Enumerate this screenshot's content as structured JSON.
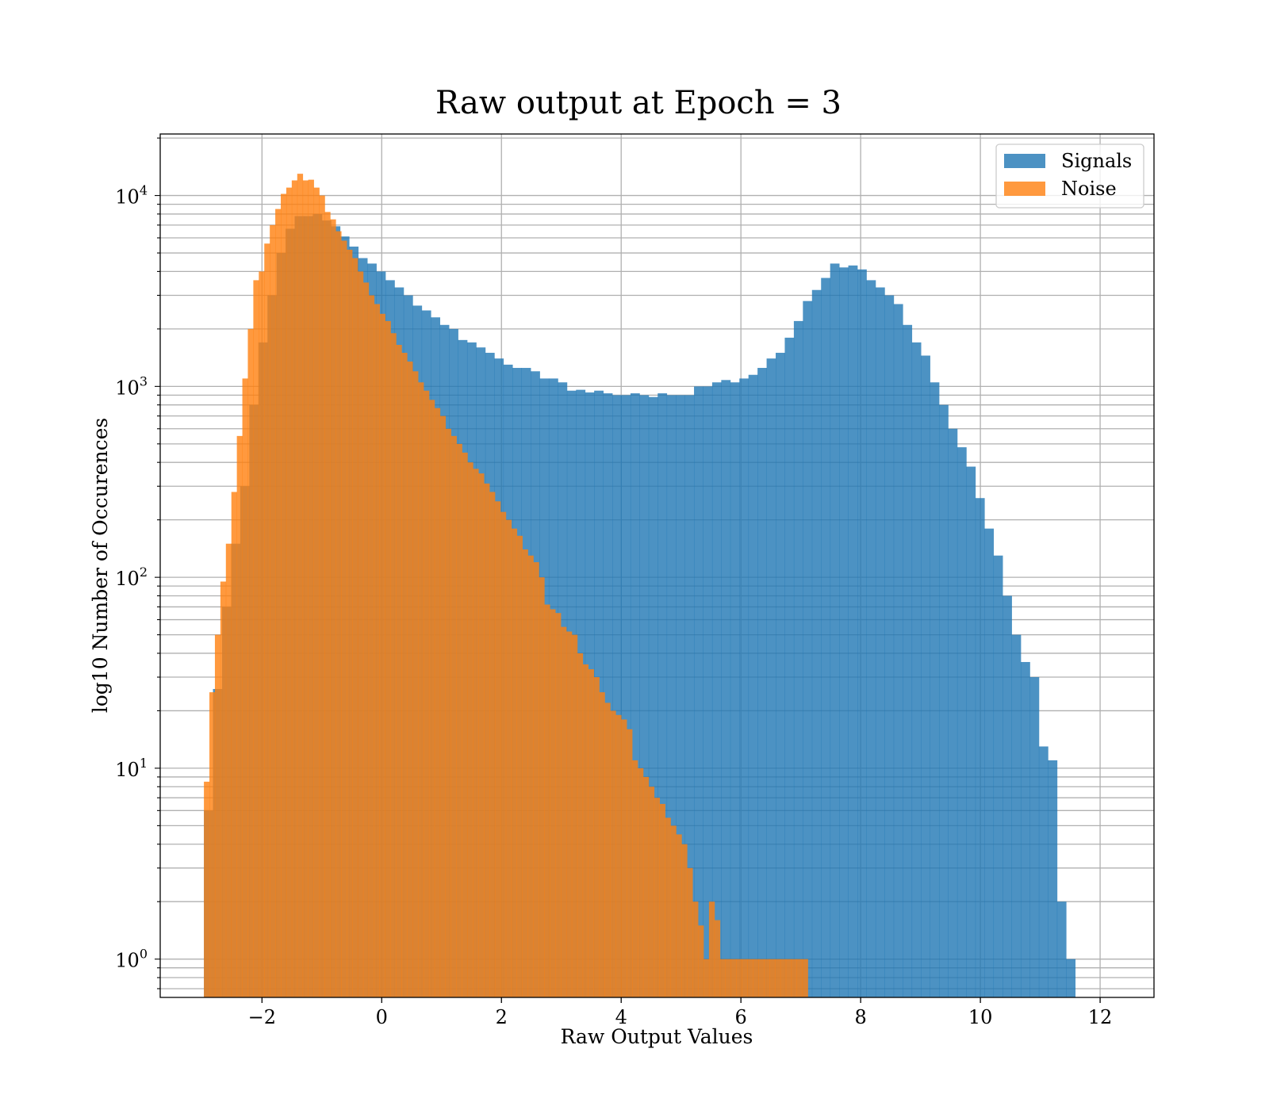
{
  "chart_data": {
    "type": "bar",
    "title": "Raw output at Epoch = 3",
    "xlabel": "Raw Output Values",
    "ylabel": "log10 Number of Occurences",
    "yscale": "log",
    "xlim": [
      -3.7,
      12.9
    ],
    "ylim": [
      0.63,
      21000
    ],
    "xticks": [
      -2,
      0,
      2,
      4,
      6,
      8,
      10,
      12
    ],
    "xtick_labels": [
      "−2",
      "0",
      "2",
      "4",
      "6",
      "8",
      "10",
      "12"
    ],
    "yticks": [
      1,
      10,
      100,
      1000,
      10000
    ],
    "ytick_bases": [
      "10",
      "10",
      "10",
      "10",
      "10"
    ],
    "ytick_exponents": [
      "0",
      "1",
      "2",
      "3",
      "4"
    ],
    "grid": true,
    "legend_position": "top-right",
    "series": [
      {
        "name": "Signals",
        "color": "#1f77b4",
        "bin_start": -2.97,
        "bin_width": 0.1516,
        "counts": [
          6,
          26,
          70,
          150,
          300,
          800,
          1700,
          3000,
          5000,
          6700,
          7800,
          7800,
          8000,
          7400,
          6900,
          6100,
          5400,
          4700,
          4400,
          4000,
          3600,
          3300,
          3000,
          2650,
          2500,
          2300,
          2100,
          2000,
          1750,
          1700,
          1600,
          1500,
          1400,
          1300,
          1250,
          1250,
          1200,
          1100,
          1100,
          1050,
          950,
          960,
          930,
          950,
          920,
          900,
          900,
          920,
          900,
          880,
          920,
          900,
          900,
          900,
          1000,
          1000,
          1050,
          1080,
          1050,
          1100,
          1150,
          1250,
          1400,
          1500,
          1800,
          2200,
          2800,
          3200,
          3700,
          4400,
          4200,
          4300,
          4100,
          3600,
          3300,
          3000,
          2700,
          2100,
          1700,
          1450,
          1050,
          800,
          600,
          480,
          380,
          260,
          180,
          130,
          80,
          50,
          36,
          30,
          13,
          11,
          2,
          1
        ]
      },
      {
        "name": "Noise",
        "color": "#ff7f0e",
        "bin_start": -2.97,
        "bin_width": 0.0917,
        "counts": [
          8.5,
          25,
          50,
          95,
          150,
          280,
          550,
          1100,
          2000,
          3600,
          4000,
          5600,
          7000,
          8500,
          10200,
          11000,
          12000,
          13000,
          12000,
          12100,
          11000,
          10000,
          8200,
          7500,
          6500,
          5800,
          5200,
          4700,
          4000,
          3500,
          3000,
          2700,
          2400,
          2200,
          1900,
          1650,
          1500,
          1350,
          1200,
          1050,
          950,
          850,
          770,
          700,
          600,
          550,
          500,
          450,
          400,
          370,
          350,
          310,
          280,
          250,
          220,
          200,
          180,
          165,
          140,
          130,
          120,
          100,
          72,
          68,
          65,
          55,
          52,
          50,
          40,
          35,
          33,
          30,
          25,
          22,
          20,
          19,
          18,
          16,
          11,
          10,
          9,
          8,
          7,
          6.5,
          5.5,
          5,
          4.5,
          4,
          3,
          2,
          1.5,
          1,
          2,
          1.6,
          1,
          1,
          1,
          1,
          1,
          1,
          1,
          1,
          1,
          1,
          1,
          1,
          1,
          1,
          1,
          1
        ]
      }
    ]
  }
}
